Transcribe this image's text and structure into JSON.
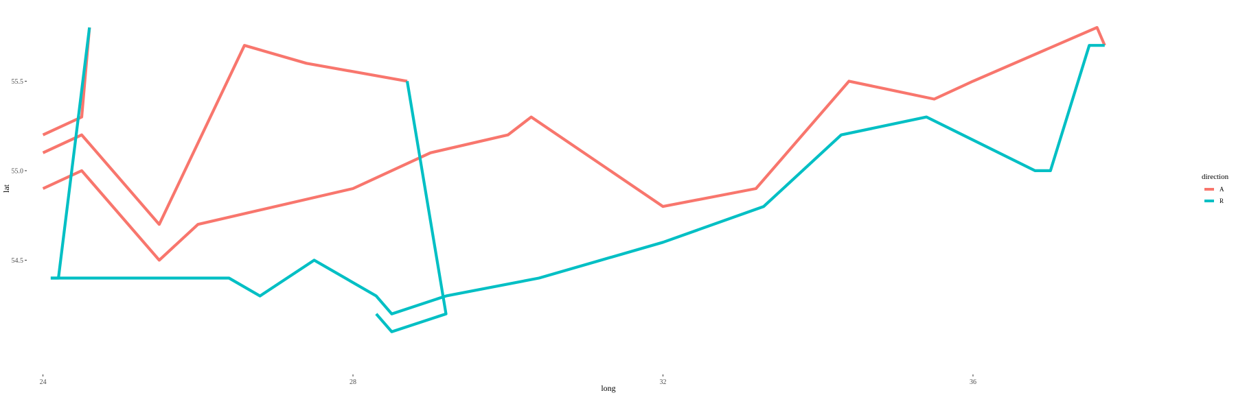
{
  "chart_data": {
    "type": "line",
    "title": "",
    "xlabel": "long",
    "ylabel": "lat",
    "xlim": [
      23.8,
      38.8
    ],
    "ylim": [
      53.9,
      55.9
    ],
    "x_ticks": [
      24,
      28,
      32,
      36
    ],
    "y_ticks": [
      54.5,
      55.0,
      55.5
    ],
    "y_tick_labels": [
      "54.5",
      "55.0",
      "55.5"
    ],
    "grid": false,
    "legend": {
      "title": "direction",
      "position": "right",
      "entries": [
        "A",
        "R"
      ]
    },
    "colors": {
      "A": "#F8766D",
      "R": "#00BFC4"
    },
    "series": [
      {
        "name": "A",
        "group": 1,
        "points": [
          [
            24.0,
            55.2
          ],
          [
            24.5,
            55.3
          ],
          [
            24.6,
            55.8
          ]
        ]
      },
      {
        "name": "A",
        "group": 2,
        "points": [
          [
            24.0,
            55.1
          ],
          [
            24.5,
            55.2
          ],
          [
            25.5,
            54.7
          ],
          [
            26.6,
            55.7
          ],
          [
            27.4,
            55.6
          ],
          [
            28.7,
            55.5
          ]
        ]
      },
      {
        "name": "A",
        "group": 3,
        "points": [
          [
            24.0,
            54.9
          ],
          [
            24.5,
            55.0
          ],
          [
            25.5,
            54.5
          ],
          [
            26.0,
            54.7
          ],
          [
            28.0,
            54.9
          ],
          [
            29.0,
            55.1
          ],
          [
            30.0,
            55.2
          ],
          [
            30.3,
            55.3
          ],
          [
            32.0,
            54.8
          ],
          [
            33.2,
            54.9
          ],
          [
            34.4,
            55.5
          ],
          [
            35.5,
            55.4
          ],
          [
            36.0,
            55.5
          ],
          [
            37.6,
            55.8
          ],
          [
            37.7,
            55.7
          ]
        ]
      },
      {
        "name": "R",
        "group": 1,
        "points": [
          [
            24.1,
            54.4
          ],
          [
            24.2,
            54.4
          ],
          [
            24.6,
            55.8
          ]
        ]
      },
      {
        "name": "R",
        "group": 2,
        "points": [
          [
            24.1,
            54.4
          ],
          [
            26.4,
            54.4
          ],
          [
            26.8,
            54.3
          ],
          [
            27.5,
            54.5
          ],
          [
            28.3,
            54.3
          ],
          [
            28.5,
            54.2
          ],
          [
            29.2,
            54.3
          ],
          [
            30.4,
            54.4
          ],
          [
            32.0,
            54.6
          ],
          [
            33.3,
            54.8
          ],
          [
            34.3,
            55.2
          ],
          [
            35.4,
            55.3
          ],
          [
            36.8,
            55.0
          ],
          [
            37.0,
            55.0
          ],
          [
            37.5,
            55.7
          ],
          [
            37.7,
            55.7
          ]
        ]
      },
      {
        "name": "R",
        "group": 3,
        "points": [
          [
            28.3,
            54.2
          ],
          [
            28.5,
            54.1
          ],
          [
            29.2,
            54.2
          ],
          [
            28.7,
            55.5
          ]
        ]
      }
    ]
  }
}
